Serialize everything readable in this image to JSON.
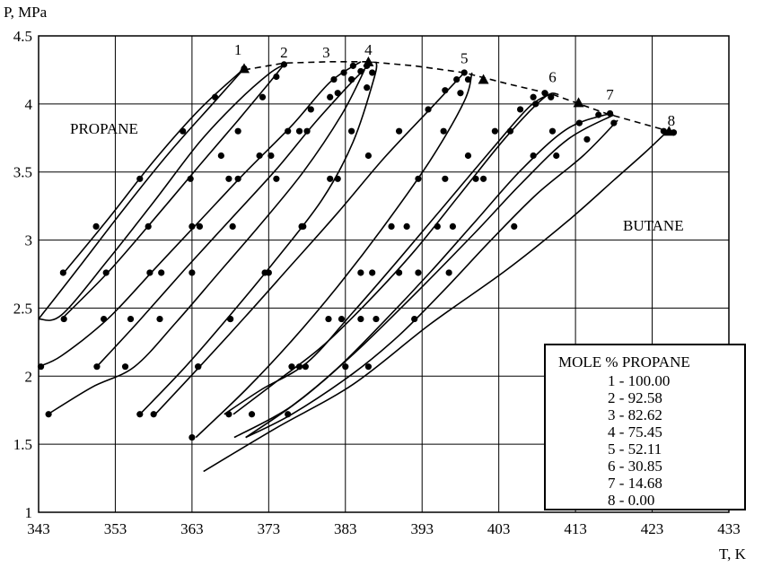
{
  "chart_data": {
    "type": "line",
    "xlabel": "T, K",
    "ylabel": "P, MPa",
    "xlim": [
      343,
      433
    ],
    "ylim": [
      1,
      4.5
    ],
    "x_ticks": [
      "343",
      "353",
      "363",
      "373",
      "383",
      "393",
      "403",
      "413",
      "423",
      "433"
    ],
    "y_ticks": [
      "1",
      "1.5",
      "2",
      "2.5",
      "3",
      "3.5",
      "4",
      "4.5"
    ],
    "grid": true,
    "annotations": {
      "propane": "PROPANE",
      "butane": "BUTANE"
    },
    "legend": {
      "title": "MOLE % PROPANE",
      "entries": [
        "1 - 100.00",
        "2 - 92.58",
        "3 - 82.62",
        "4 - 75.45",
        "5 - 52.11",
        "6 - 30.85",
        "7 - 14.68",
        "8 - 0.00"
      ]
    },
    "critical_locus": {
      "style": "dashed",
      "points": [
        [
          369.8,
          4.25
        ],
        [
          375.0,
          4.3
        ],
        [
          381.0,
          4.31
        ],
        [
          386.0,
          4.31
        ],
        [
          392.0,
          4.28
        ],
        [
          398.5,
          4.23
        ],
        [
          404.0,
          4.15
        ],
        [
          410.0,
          4.07
        ],
        [
          417.0,
          3.93
        ],
        [
          425.2,
          3.8
        ]
      ]
    },
    "triangle_markers": [
      [
        369.8,
        4.26
      ],
      [
        386.0,
        4.31
      ],
      [
        401.0,
        4.18
      ],
      [
        413.4,
        4.01
      ],
      [
        425.2,
        3.8
      ]
    ],
    "series": [
      {
        "name": "1",
        "label_at": [
          369.0,
          4.4
        ],
        "lines": [
          [
            [
              346.3,
              2.76
            ],
            [
              352.0,
              3.15
            ],
            [
              358.0,
              3.58
            ],
            [
              364.0,
              3.96
            ],
            [
              369.8,
              4.26
            ]
          ],
          [
            [
              343.0,
              2.42
            ],
            [
              348.0,
              2.78
            ],
            [
              354.0,
              3.22
            ],
            [
              360.0,
              3.64
            ],
            [
              366.0,
              4.02
            ],
            [
              369.8,
              4.26
            ]
          ]
        ],
        "points": [
          [
            346.2,
            2.76
          ],
          [
            350.5,
            3.1
          ],
          [
            356.2,
            3.45
          ],
          [
            361.8,
            3.8
          ],
          [
            366.0,
            4.05
          ],
          [
            369.8,
            4.26
          ]
        ]
      },
      {
        "name": "2",
        "label_at": [
          375.0,
          4.38
        ],
        "lines": [
          [
            [
              343.0,
              2.42
            ],
            [
              346.0,
              2.45
            ],
            [
              352.0,
              2.85
            ],
            [
              358.0,
              3.28
            ],
            [
              364.0,
              3.72
            ],
            [
              369.0,
              4.02
            ],
            [
              373.0,
              4.22
            ],
            [
              375.0,
              4.29
            ]
          ],
          [
            [
              346.0,
              2.42
            ],
            [
              352.0,
              2.76
            ],
            [
              358.0,
              3.15
            ],
            [
              364.0,
              3.55
            ],
            [
              369.0,
              3.88
            ],
            [
              373.0,
              4.15
            ],
            [
              375.0,
              4.29
            ]
          ]
        ],
        "points": [
          [
            346.3,
            2.42
          ],
          [
            351.8,
            2.76
          ],
          [
            357.3,
            3.1
          ],
          [
            362.8,
            3.45
          ],
          [
            366.8,
            3.62
          ],
          [
            369.0,
            3.8
          ],
          [
            372.2,
            4.05
          ],
          [
            374.0,
            4.2
          ],
          [
            375.0,
            4.29
          ]
        ]
      },
      {
        "name": "3",
        "label_at": [
          380.5,
          4.38
        ],
        "lines": [
          [
            [
              343.0,
              2.07
            ],
            [
              346.0,
              2.15
            ],
            [
              352.0,
              2.42
            ],
            [
              358.0,
              2.78
            ],
            [
              364.0,
              3.14
            ],
            [
              370.0,
              3.5
            ],
            [
              376.0,
              3.84
            ],
            [
              381.0,
              4.16
            ],
            [
              385.0,
              4.31
            ]
          ],
          [
            [
              344.2,
              1.72
            ],
            [
              350.0,
              1.92
            ],
            [
              355.5,
              2.07
            ],
            [
              361.0,
              2.4
            ],
            [
              366.5,
              2.76
            ],
            [
              372.0,
              3.12
            ],
            [
              377.5,
              3.5
            ],
            [
              382.5,
              3.92
            ],
            [
              385.5,
              4.25
            ]
          ]
        ],
        "points": [
          [
            343.3,
            2.07
          ],
          [
            351.5,
            2.42
          ],
          [
            357.5,
            2.76
          ],
          [
            363.0,
            3.1
          ],
          [
            367.8,
            3.45
          ],
          [
            371.8,
            3.62
          ],
          [
            375.5,
            3.8
          ],
          [
            378.5,
            3.96
          ],
          [
            381.5,
            4.18
          ],
          [
            382.8,
            4.23
          ],
          [
            384.0,
            4.28
          ],
          [
            344.3,
            1.72
          ],
          [
            354.3,
            2.07
          ],
          [
            358.8,
            2.42
          ],
          [
            363.0,
            2.76
          ],
          [
            368.3,
            3.1
          ],
          [
            374.0,
            3.45
          ],
          [
            378.0,
            3.8
          ],
          [
            382.0,
            4.08
          ],
          [
            383.8,
            4.18
          ],
          [
            385.0,
            4.24
          ]
        ]
      },
      {
        "name": "4",
        "label_at": [
          386.0,
          4.4
        ],
        "lines": [
          [
            [
              350.6,
              2.07
            ],
            [
              356.0,
              2.4
            ],
            [
              362.0,
              2.78
            ],
            [
              368.0,
              3.15
            ],
            [
              374.0,
              3.52
            ],
            [
              379.0,
              3.86
            ],
            [
              384.0,
              4.17
            ],
            [
              386.5,
              4.31
            ]
          ],
          [
            [
              356.2,
              1.72
            ],
            [
              362.0,
              2.06
            ],
            [
              368.0,
              2.45
            ],
            [
              374.0,
              2.86
            ],
            [
              380.0,
              3.3
            ],
            [
              384.0,
              3.72
            ],
            [
              386.8,
              4.2
            ],
            [
              387.0,
              4.31
            ]
          ]
        ],
        "points": [
          [
            350.6,
            2.07
          ],
          [
            355.0,
            2.42
          ],
          [
            359.0,
            2.76
          ],
          [
            364.0,
            3.1
          ],
          [
            369.0,
            3.45
          ],
          [
            373.3,
            3.62
          ],
          [
            377.0,
            3.8
          ],
          [
            381.0,
            4.05
          ],
          [
            383.8,
            4.18
          ],
          [
            385.8,
            4.28
          ],
          [
            356.2,
            1.72
          ],
          [
            363.8,
            2.07
          ],
          [
            368.0,
            2.42
          ],
          [
            373.0,
            2.76
          ],
          [
            377.5,
            3.1
          ],
          [
            381.0,
            3.45
          ],
          [
            383.8,
            3.8
          ],
          [
            385.8,
            4.12
          ],
          [
            386.5,
            4.23
          ]
        ]
      },
      {
        "name": "5",
        "label_at": [
          398.5,
          4.34
        ],
        "lines": [
          [
            [
              358.2,
              1.72
            ],
            [
              364.0,
              2.07
            ],
            [
              370.0,
              2.44
            ],
            [
              376.0,
              2.82
            ],
            [
              382.0,
              3.2
            ],
            [
              388.0,
              3.6
            ],
            [
              394.0,
              3.96
            ],
            [
              398.5,
              4.23
            ]
          ],
          [
            [
              363.5,
              1.55
            ],
            [
              370.0,
              1.9
            ],
            [
              376.0,
              2.26
            ],
            [
              382.0,
              2.66
            ],
            [
              388.0,
              3.1
            ],
            [
              394.0,
              3.58
            ],
            [
              398.5,
              4.02
            ],
            [
              399.5,
              4.23
            ]
          ]
        ],
        "points": [
          [
            358.0,
            1.72
          ],
          [
            363.8,
            2.07
          ],
          [
            368.0,
            2.42
          ],
          [
            372.5,
            2.76
          ],
          [
            377.3,
            3.1
          ],
          [
            382.0,
            3.45
          ],
          [
            386.0,
            3.62
          ],
          [
            390.0,
            3.8
          ],
          [
            393.8,
            3.96
          ],
          [
            396.0,
            4.1
          ],
          [
            397.5,
            4.18
          ],
          [
            398.5,
            4.23
          ],
          [
            363.0,
            1.55
          ],
          [
            370.8,
            1.72
          ],
          [
            376.0,
            2.07
          ],
          [
            380.8,
            2.42
          ],
          [
            385.0,
            2.76
          ],
          [
            389.0,
            3.1
          ],
          [
            392.5,
            3.45
          ],
          [
            395.8,
            3.8
          ],
          [
            398.0,
            4.08
          ],
          [
            399.0,
            4.18
          ]
        ]
      },
      {
        "name": "6",
        "label_at": [
          410.0,
          4.2
        ],
        "lines": [
          [
            [
              367.2,
              1.72
            ],
            [
              372.0,
              1.9
            ],
            [
              378.0,
              2.1
            ],
            [
              384.0,
              2.47
            ],
            [
              390.0,
              2.86
            ],
            [
              396.0,
              3.26
            ],
            [
              402.0,
              3.66
            ],
            [
              407.0,
              3.98
            ],
            [
              410.0,
              4.08
            ]
          ],
          [
            [
              368.4,
              1.72
            ],
            [
              374.0,
              1.96
            ],
            [
              380.0,
              2.22
            ],
            [
              386.0,
              2.55
            ],
            [
              392.0,
              2.92
            ],
            [
              398.0,
              3.34
            ],
            [
              404.0,
              3.76
            ],
            [
              409.0,
              4.05
            ],
            [
              410.8,
              4.07
            ]
          ]
        ],
        "points": [
          [
            367.8,
            1.72
          ],
          [
            377.0,
            2.07
          ],
          [
            382.5,
            2.42
          ],
          [
            386.5,
            2.76
          ],
          [
            391.0,
            3.1
          ],
          [
            396.0,
            3.45
          ],
          [
            399.0,
            3.62
          ],
          [
            402.5,
            3.8
          ],
          [
            405.8,
            3.96
          ],
          [
            407.5,
            4.05
          ],
          [
            409.0,
            4.08
          ],
          [
            377.8,
            2.07
          ],
          [
            385.0,
            2.42
          ],
          [
            390.0,
            2.76
          ],
          [
            395.0,
            3.1
          ],
          [
            400.0,
            3.45
          ],
          [
            404.5,
            3.8
          ],
          [
            407.8,
            4.0
          ],
          [
            409.8,
            4.05
          ]
        ]
      },
      {
        "name": "7",
        "label_at": [
          417.5,
          4.07
        ],
        "lines": [
          [
            [
              370.0,
              1.55
            ],
            [
              376.0,
              1.78
            ],
            [
              382.0,
              2.06
            ],
            [
              388.0,
              2.4
            ],
            [
              394.0,
              2.76
            ],
            [
              400.0,
              3.14
            ],
            [
              406.0,
              3.52
            ],
            [
              412.0,
              3.82
            ],
            [
              417.5,
              3.93
            ]
          ],
          [
            [
              368.5,
              1.55
            ],
            [
              376.0,
              1.78
            ],
            [
              384.0,
              2.16
            ],
            [
              392.0,
              2.6
            ],
            [
              400.0,
              3.06
            ],
            [
              406.0,
              3.42
            ],
            [
              412.0,
              3.74
            ],
            [
              418.0,
              3.92
            ]
          ]
        ],
        "points": [
          [
            383.0,
            2.07
          ],
          [
            387.0,
            2.42
          ],
          [
            392.5,
            2.76
          ],
          [
            397.0,
            3.1
          ],
          [
            401.0,
            3.45
          ],
          [
            407.5,
            3.62
          ],
          [
            410.0,
            3.8
          ],
          [
            413.5,
            3.86
          ],
          [
            416.0,
            3.92
          ],
          [
            417.5,
            3.93
          ]
        ]
      },
      {
        "name": "8",
        "label_at": [
          425.5,
          3.88
        ],
        "lines": [
          [
            [
              370.0,
              1.55
            ],
            [
              376.0,
              1.72
            ],
            [
              384.0,
              2.02
            ],
            [
              390.0,
              2.3
            ],
            [
              396.0,
              2.64
            ],
            [
              402.0,
              3.0
            ],
            [
              408.0,
              3.34
            ],
            [
              414.0,
              3.62
            ],
            [
              418.5,
              3.88
            ]
          ],
          [
            [
              364.5,
              1.3
            ],
            [
              374.0,
              1.62
            ],
            [
              384.0,
              1.94
            ],
            [
              394.0,
              2.38
            ],
            [
              404.0,
              2.78
            ],
            [
              412.0,
              3.14
            ],
            [
              418.0,
              3.44
            ],
            [
              422.0,
              3.64
            ],
            [
              425.0,
              3.8
            ]
          ]
        ],
        "points": [
          [
            375.5,
            1.72
          ],
          [
            386.0,
            2.07
          ],
          [
            392.0,
            2.42
          ],
          [
            396.5,
            2.76
          ],
          [
            405.0,
            3.1
          ],
          [
            410.5,
            3.62
          ],
          [
            414.5,
            3.74
          ],
          [
            418.0,
            3.86
          ],
          [
            424.5,
            3.8
          ],
          [
            425.8,
            3.79
          ]
        ]
      }
    ]
  }
}
